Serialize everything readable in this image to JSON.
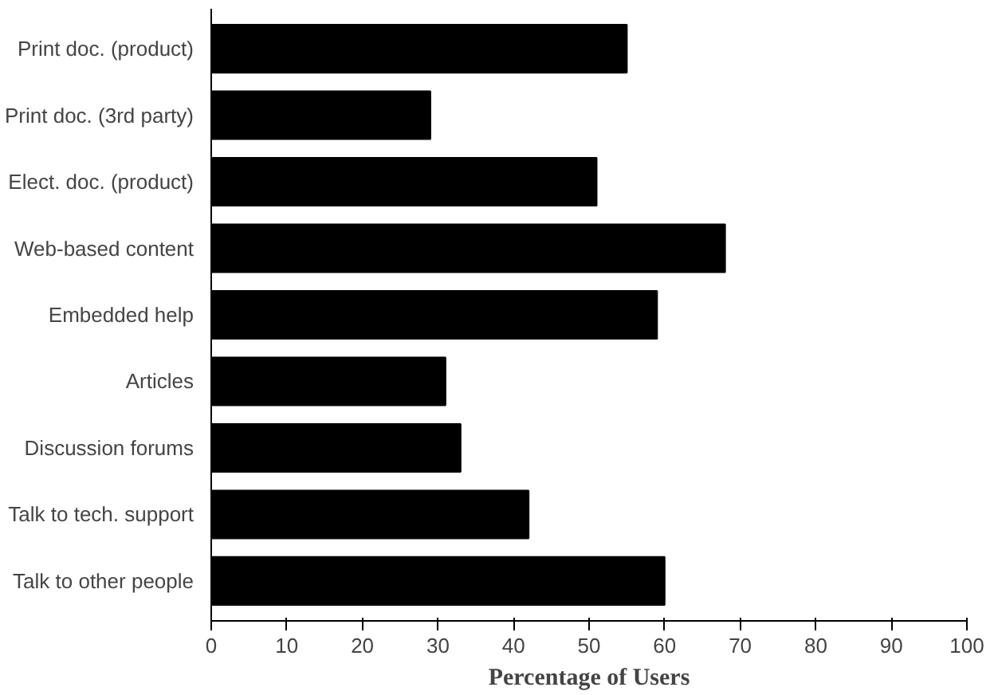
{
  "chart_data": {
    "type": "bar",
    "orientation": "horizontal",
    "xlabel": "Percentage of Users",
    "categories": [
      "Print doc. (product)",
      "Print doc. (3rd party)",
      "Elect. doc. (product)",
      "Web-based content",
      "Embedded help",
      "Articles",
      "Discussion forums",
      "Talk to tech. support",
      "Talk to other people"
    ],
    "values": [
      55,
      29,
      51,
      68,
      59,
      31,
      33,
      42,
      60
    ],
    "color": "#000000",
    "xlim": [
      0,
      100
    ],
    "xticks": [
      0,
      10,
      20,
      30,
      40,
      50,
      60,
      70,
      80,
      90,
      100
    ],
    "grid": false
  }
}
